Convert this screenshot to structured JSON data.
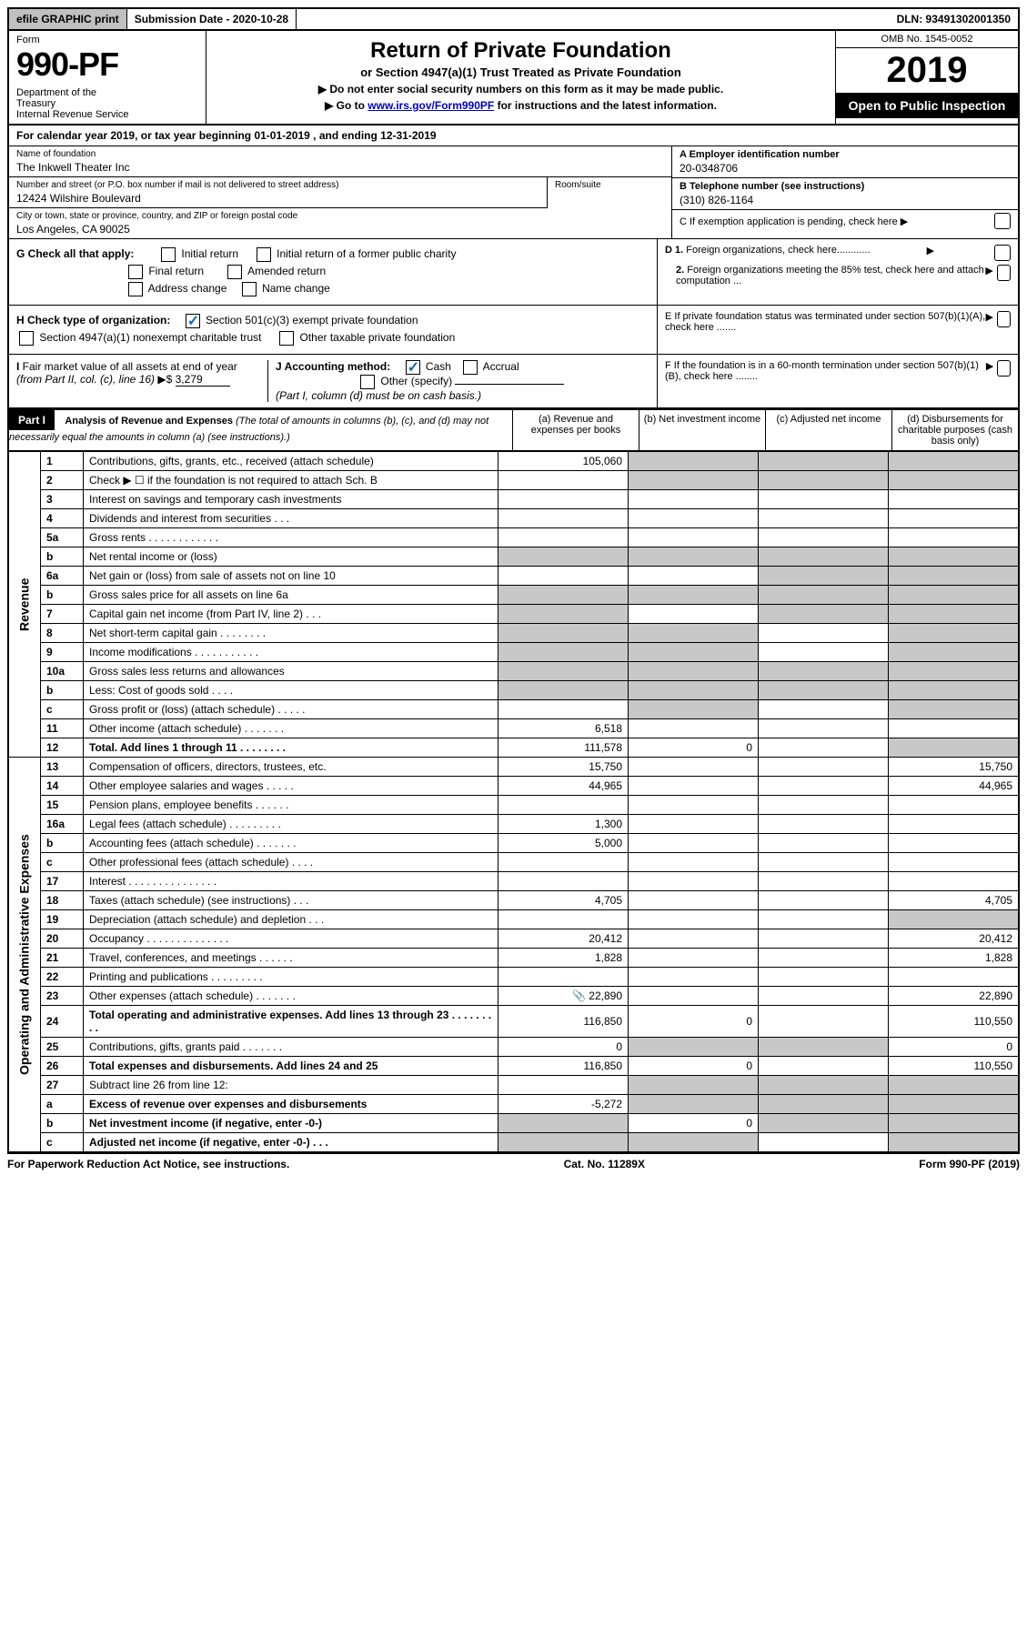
{
  "top": {
    "efile": "efile GRAPHIC print",
    "submission": "Submission Date - 2020-10-28",
    "dln": "DLN: 93491302001350"
  },
  "header": {
    "form_label": "Form",
    "form_number": "990-PF",
    "dept": "Department of the Treasury\nInternal Revenue Service",
    "title": "Return of Private Foundation",
    "subtitle": "or Section 4947(a)(1) Trust Treated as Private Foundation",
    "note1": "▶ Do not enter social security numbers on this form as it may be made public.",
    "note2": "▶ Go to ",
    "link": "www.irs.gov/Form990PF",
    "note2b": " for instructions and the latest information.",
    "omb": "OMB No. 1545-0052",
    "year": "2019",
    "open": "Open to Public Inspection"
  },
  "calendar": "For calendar year 2019, or tax year beginning 01-01-2019                          , and ending 12-31-2019",
  "info": {
    "name_label": "Name of foundation",
    "name": "The Inkwell Theater Inc",
    "addr_label": "Number and street (or P.O. box number if mail is not delivered to street address)",
    "addr": "12424 Wilshire Boulevard",
    "room_label": "Room/suite",
    "city_label": "City or town, state or province, country, and ZIP or foreign postal code",
    "city": "Los Angeles, CA  90025",
    "ein_label": "A Employer identification number",
    "ein": "20-0348706",
    "phone_label": "B Telephone number (see instructions)",
    "phone": "(310) 826-1164",
    "c_label": "C If exemption application is pending, check here ▶"
  },
  "checks": {
    "g_label": "G Check all that apply:",
    "g_initial": "Initial return",
    "g_initial_former": "Initial return of a former public charity",
    "g_final": "Final return",
    "g_amended": "Amended return",
    "g_address": "Address change",
    "g_name": "Name change",
    "h_label": "H Check type of organization:",
    "h_501c3": "Section 501(c)(3) exempt private foundation",
    "h_4947": "Section 4947(a)(1) nonexempt charitable trust",
    "h_other": "Other taxable private foundation",
    "i_label": "I Fair market value of all assets at end of year (from Part II, col. (c), line 16) ▶$",
    "i_value": "3,279",
    "j_label": "J Accounting method:",
    "j_cash": "Cash",
    "j_accrual": "Accrual",
    "j_other": "Other (specify)",
    "j_note": "(Part I, column (d) must be on cash basis.)",
    "d1": "D 1. Foreign organizations, check here............",
    "d2": "2. Foreign organizations meeting the 85% test, check here and attach computation ...",
    "e": "E  If private foundation status was terminated under section 507(b)(1)(A), check here .......",
    "f": "F  If the foundation is in a 60-month termination under section 507(b)(1)(B), check here ........"
  },
  "part1": {
    "title": "Part I",
    "heading": "Analysis of Revenue and Expenses",
    "heading_note": "(The total of amounts in columns (b), (c), and (d) may not necessarily equal the amounts in column (a) (see instructions).)",
    "col_a": "(a)   Revenue and expenses per books",
    "col_b": "(b)  Net investment income",
    "col_c": "(c)  Adjusted net income",
    "col_d": "(d)  Disbursements for charitable purposes (cash basis only)"
  },
  "sections": {
    "revenue": "Revenue",
    "opex": "Operating and Administrative Expenses"
  },
  "rows": [
    {
      "n": "1",
      "d": "Contributions, gifts, grants, etc., received (attach schedule)",
      "a": "105,060",
      "bGrey": true,
      "cGrey": true,
      "dGrey": true
    },
    {
      "n": "2",
      "d": "Check ▶ ☐ if the foundation is not required to attach Sch. B",
      "bGrey": true,
      "cGrey": true,
      "dGrey": true
    },
    {
      "n": "3",
      "d": "Interest on savings and temporary cash investments"
    },
    {
      "n": "4",
      "d": "Dividends and interest from securities   .  .  ."
    },
    {
      "n": "5a",
      "d": "Gross rents   .  .  .  .  .  .  .  .  .  .  .  ."
    },
    {
      "n": "b",
      "d": "Net rental income or (loss)  ",
      "bGrey": true,
      "cGrey": true,
      "dGrey": true,
      "aGrey": true
    },
    {
      "n": "6a",
      "d": "Net gain or (loss) from sale of assets not on line 10",
      "cGrey": true,
      "dGrey": true
    },
    {
      "n": "b",
      "d": "Gross sales price for all assets on line 6a  ",
      "aGrey": true,
      "bGrey": true,
      "cGrey": true,
      "dGrey": true
    },
    {
      "n": "7",
      "d": "Capital gain net income (from Part IV, line 2)   .  .  .",
      "aGrey": true,
      "cGrey": true,
      "dGrey": true
    },
    {
      "n": "8",
      "d": "Net short-term capital gain   .  .  .  .  .  .  .  .",
      "aGrey": true,
      "bGrey": true,
      "dGrey": true
    },
    {
      "n": "9",
      "d": "Income modifications  .  .  .  .  .  .  .  .  .  .  .",
      "aGrey": true,
      "bGrey": true,
      "dGrey": true
    },
    {
      "n": "10a",
      "d": "Gross sales less returns and allowances",
      "aGrey": true,
      "bGrey": true,
      "cGrey": true,
      "dGrey": true
    },
    {
      "n": "b",
      "d": "Less: Cost of goods sold   .  .  .  .",
      "aGrey": true,
      "bGrey": true,
      "cGrey": true,
      "dGrey": true
    },
    {
      "n": "c",
      "d": "Gross profit or (loss) (attach schedule)   .  .  .  .  .",
      "bGrey": true,
      "dGrey": true
    },
    {
      "n": "11",
      "d": "Other income (attach schedule)   .  .  .  .  .  .  .",
      "a": "6,518"
    },
    {
      "n": "12",
      "d": "Total. Add lines 1 through 11   .  .  .  .  .  .  .  .",
      "bold": true,
      "a": "111,578",
      "b": "0",
      "dGrey": true
    }
  ],
  "opex_rows": [
    {
      "n": "13",
      "d": "Compensation of officers, directors, trustees, etc.",
      "a": "15,750",
      "dv": "15,750"
    },
    {
      "n": "14",
      "d": "Other employee salaries and wages   .  .  .  .  .",
      "a": "44,965",
      "dv": "44,965"
    },
    {
      "n": "15",
      "d": "Pension plans, employee benefits   .  .  .  .  .  ."
    },
    {
      "n": "16a",
      "d": "Legal fees (attach schedule)  .  .  .  .  .  .  .  .  .",
      "a": "1,300"
    },
    {
      "n": "b",
      "d": "Accounting fees (attach schedule)  .  .  .  .  .  .  .",
      "a": "5,000"
    },
    {
      "n": "c",
      "d": "Other professional fees (attach schedule)   .  .  .  ."
    },
    {
      "n": "17",
      "d": "Interest   .  .  .  .  .  .  .  .  .  .  .  .  .  .  ."
    },
    {
      "n": "18",
      "d": "Taxes (attach schedule) (see instructions)   .  .  .",
      "a": "4,705",
      "dv": "4,705"
    },
    {
      "n": "19",
      "d": "Depreciation (attach schedule) and depletion   .  .  .",
      "dGrey": true
    },
    {
      "n": "20",
      "d": "Occupancy  .  .  .  .  .  .  .  .  .  .  .  .  .  .",
      "a": "20,412",
      "dv": "20,412"
    },
    {
      "n": "21",
      "d": "Travel, conferences, and meetings   .  .  .  .  .  .",
      "a": "1,828",
      "dv": "1,828"
    },
    {
      "n": "22",
      "d": "Printing and publications   .  .  .  .  .  .  .  .  ."
    },
    {
      "n": "23",
      "d": "Other expenses (attach schedule)   .  .  .  .  .  .  .",
      "a": "22,890",
      "dv": "22,890",
      "attach": true
    },
    {
      "n": "24",
      "d": "Total operating and administrative expenses. Add lines 13 through 23   .  .  .  .  .  .  .  .  .",
      "bold": true,
      "a": "116,850",
      "b": "0",
      "dv": "110,550"
    },
    {
      "n": "25",
      "d": "Contributions, gifts, grants paid   .  .  .  .  .  .  .",
      "a": "0",
      "bGrey": true,
      "cGrey": true,
      "dv": "0"
    },
    {
      "n": "26",
      "d": "Total expenses and disbursements. Add lines 24 and 25",
      "bold": true,
      "a": "116,850",
      "b": "0",
      "dv": "110,550"
    },
    {
      "n": "27",
      "d": "Subtract line 26 from line 12:",
      "bGrey": true,
      "cGrey": true,
      "dGrey": true
    },
    {
      "n": "a",
      "d": "Excess of revenue over expenses and disbursements",
      "bold": true,
      "a": "-5,272",
      "bGrey": true,
      "cGrey": true,
      "dGrey": true
    },
    {
      "n": "b",
      "d": "Net investment income (if negative, enter -0-)",
      "bold": true,
      "aGrey": true,
      "b": "0",
      "cGrey": true,
      "dGrey": true
    },
    {
      "n": "c",
      "d": "Adjusted net income (if negative, enter -0-)   .  .  .",
      "bold": true,
      "aGrey": true,
      "bGrey": true,
      "dGrey": true
    }
  ],
  "footer": {
    "left": "For Paperwork Reduction Act Notice, see instructions.",
    "center": "Cat. No. 11289X",
    "right": "Form 990-PF (2019)"
  }
}
